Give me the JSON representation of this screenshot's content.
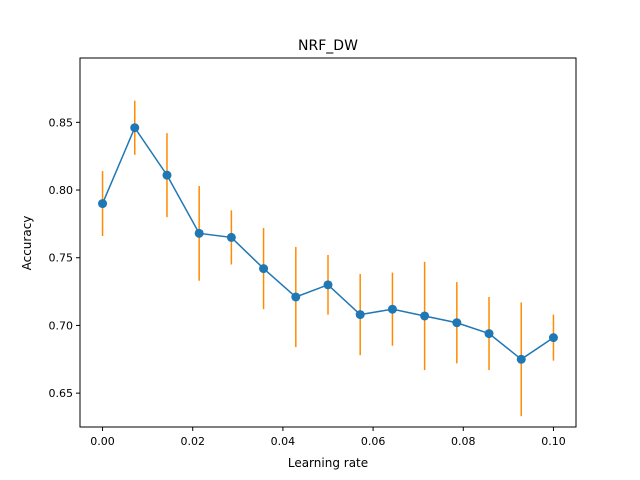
{
  "chart_data": {
    "type": "line",
    "title": "NRF_DW",
    "xlabel": "Learning rate",
    "ylabel": "Accuracy",
    "xlim": [
      -0.005,
      0.105
    ],
    "ylim": [
      0.625,
      0.8975
    ],
    "xticks": [
      0.0,
      0.02,
      0.04,
      0.06,
      0.08,
      0.1
    ],
    "xtick_labels": [
      "0.00",
      "0.02",
      "0.04",
      "0.06",
      "0.08",
      "0.10"
    ],
    "yticks": [
      0.65,
      0.7,
      0.75,
      0.8,
      0.85
    ],
    "ytick_labels": [
      "0.65",
      "0.70",
      "0.75",
      "0.80",
      "0.85"
    ],
    "grid": false,
    "series": [
      {
        "x": [
          0.0,
          0.00714,
          0.01429,
          0.02143,
          0.02857,
          0.03571,
          0.04286,
          0.05,
          0.05714,
          0.06429,
          0.07143,
          0.07857,
          0.08571,
          0.09286,
          0.1
        ],
        "y": [
          0.79,
          0.846,
          0.811,
          0.768,
          0.765,
          0.742,
          0.721,
          0.73,
          0.708,
          0.712,
          0.707,
          0.702,
          0.694,
          0.675,
          0.691
        ],
        "yerr": [
          0.024,
          0.02,
          0.031,
          0.035,
          0.02,
          0.03,
          0.037,
          0.022,
          0.03,
          0.027,
          0.04,
          0.03,
          0.027,
          0.042,
          0.017
        ],
        "color": "#1f77b4",
        "errorbar_color": "#ff8c00",
        "marker": "circle"
      }
    ]
  }
}
